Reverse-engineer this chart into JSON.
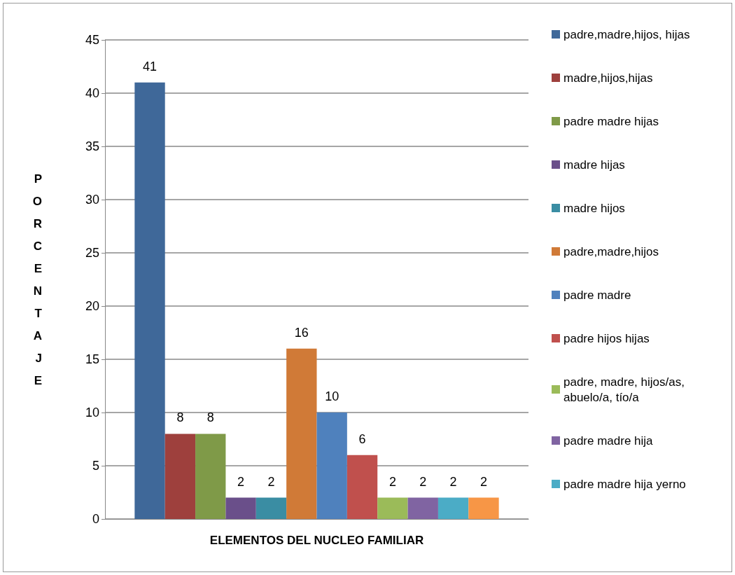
{
  "chart_data": {
    "type": "bar",
    "xlabel": "ELEMENTOS DEL NUCLEO FAMILIAR",
    "ylabel": "PORCENTAJE",
    "categories": [
      null
    ],
    "series": [
      {
        "name": "padre,madre,hijos, hijas",
        "color": "#3f6899",
        "values": [
          41
        ]
      },
      {
        "name": "madre,hijos,hijas",
        "color": "#9e403d",
        "values": [
          8
        ]
      },
      {
        "name": "padre madre hijas",
        "color": "#7f9a48",
        "values": [
          8
        ]
      },
      {
        "name": "madre hijas",
        "color": "#6a4f8a",
        "values": [
          2
        ]
      },
      {
        "name": "madre hijos",
        "color": "#3a8da3",
        "values": [
          2
        ]
      },
      {
        "name": "padre,madre,hijos",
        "color": "#d07a37",
        "values": [
          16
        ]
      },
      {
        "name": "padre madre",
        "color": "#4f81bd",
        "values": [
          10
        ]
      },
      {
        "name": "padre hijos hijas",
        "color": "#c0504d",
        "values": [
          6
        ]
      },
      {
        "name": "padre, madre, hijos/as, abuelo/a, tío/a",
        "color": "#9bbb59",
        "values": [
          2
        ]
      },
      {
        "name": "padre madre hija",
        "color": "#8064a2",
        "values": [
          2
        ]
      },
      {
        "name": "padre madre hija yerno",
        "color": "#4bacc6",
        "values": [
          2
        ]
      },
      {
        "color": "#f79646",
        "values": [
          2
        ]
      }
    ],
    "ylim": [
      0,
      45
    ],
    "yticks": [
      0,
      5,
      10,
      15,
      20,
      25,
      30,
      35,
      40,
      45
    ],
    "grid": "y",
    "legend": "right",
    "data_labels": true
  }
}
